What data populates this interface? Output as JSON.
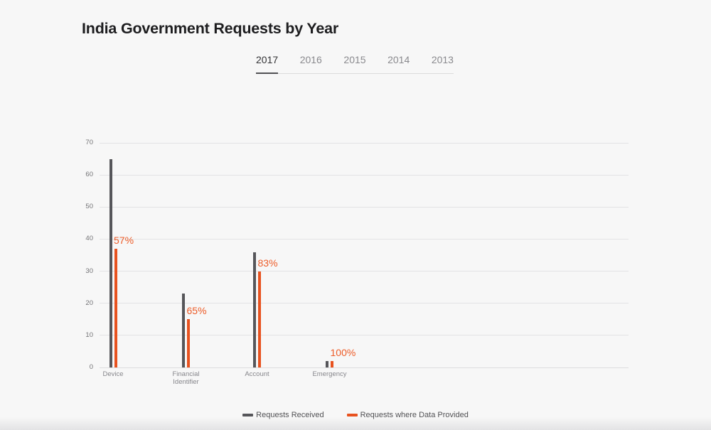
{
  "page": {
    "title": "India Government Requests by Year"
  },
  "tabs": {
    "items": [
      {
        "label": "2017",
        "active": true
      },
      {
        "label": "2016",
        "active": false
      },
      {
        "label": "2015",
        "active": false
      },
      {
        "label": "2014",
        "active": false
      },
      {
        "label": "2013",
        "active": false
      }
    ]
  },
  "chart_data": {
    "type": "bar",
    "title": "India Government Requests by Year",
    "categories": [
      "Device",
      "Financial Identifier",
      "Account",
      "Emergency"
    ],
    "series": [
      {
        "name": "Requests Received",
        "color": "#56565a",
        "values": [
          65,
          23,
          36,
          2
        ]
      },
      {
        "name": "Requests where Data Provided",
        "color": "#e8521f",
        "values": [
          37,
          15,
          30,
          2
        ]
      }
    ],
    "data_labels": {
      "for_series": "Requests where Data Provided",
      "color": "#ed5c28",
      "values": [
        "57%",
        "65%",
        "83%",
        "100%"
      ]
    },
    "xlabel": "",
    "ylabel": "",
    "ylim": [
      0,
      70
    ],
    "y_ticks": [
      0,
      10,
      20,
      30,
      40,
      50,
      60,
      70
    ],
    "grid": "horizontal",
    "legend_position": "bottom"
  }
}
